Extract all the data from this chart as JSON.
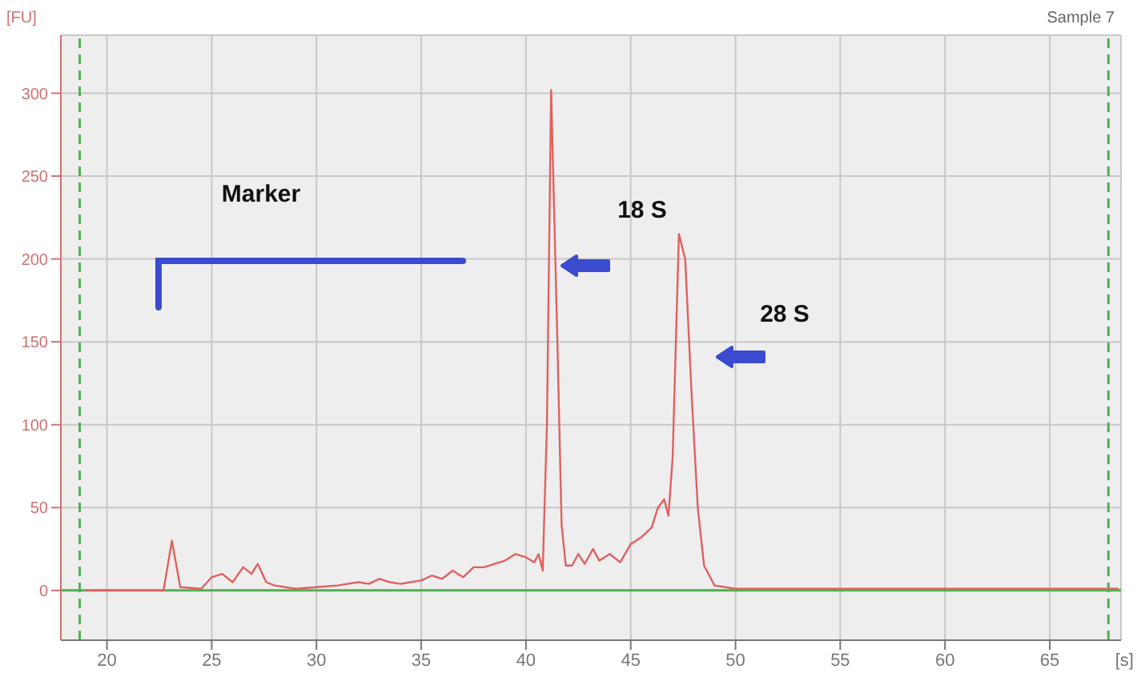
{
  "chart_data": {
    "type": "line",
    "ylabel": "[FU]",
    "xlabel": "[s]",
    "x": [
      19,
      22.7,
      23.1,
      23.5,
      24.5,
      25,
      25.5,
      26,
      26.5,
      26.9,
      27.2,
      27.6,
      28,
      29,
      30,
      31,
      32,
      32.5,
      33,
      33.5,
      34,
      35,
      35.5,
      36,
      36.5,
      37,
      37.5,
      38,
      38.5,
      39,
      39.5,
      40,
      40.4,
      40.6,
      40.8,
      41.0,
      41.2,
      41.5,
      41.7,
      41.9,
      42.2,
      42.5,
      42.8,
      43.2,
      43.5,
      44,
      44.5,
      45,
      45.5,
      46,
      46.3,
      46.6,
      46.8,
      47.0,
      47.3,
      47.6,
      47.9,
      48.2,
      48.5,
      49,
      50,
      55,
      60,
      67,
      68.3
    ],
    "series": [
      {
        "color": "#e06060",
        "values": [
          0,
          0,
          30,
          2,
          1,
          8,
          10,
          5,
          14,
          10,
          16,
          5,
          3,
          1,
          2,
          3,
          5,
          4,
          7,
          5,
          4,
          6,
          9,
          7,
          12,
          8,
          14,
          14,
          16,
          18,
          22,
          20,
          17,
          22,
          12,
          100,
          302,
          150,
          40,
          15,
          15,
          22,
          16,
          25,
          18,
          22,
          17,
          28,
          32,
          38,
          50,
          55,
          45,
          80,
          215,
          200,
          120,
          50,
          15,
          3,
          1,
          1,
          1,
          1,
          1
        ]
      }
    ],
    "xlim": [
      17.8,
      68.4
    ],
    "ylim": [
      -30,
      335
    ],
    "xticks": [
      20,
      25,
      30,
      35,
      40,
      45,
      50,
      55,
      60,
      65
    ],
    "yticks": [
      0,
      50,
      100,
      150,
      200,
      250,
      300
    ],
    "grid": true,
    "marker": "none",
    "line_style": "solid",
    "ref_lines": [
      {
        "axis": "x",
        "value": 18.7,
        "color": "#50b050",
        "line_style": "dashed"
      },
      {
        "axis": "x",
        "value": 67.8,
        "color": "#50b050",
        "line_style": "dashed"
      },
      {
        "axis": "y",
        "value": 0,
        "color": "#50b050",
        "line_style": "solid"
      }
    ],
    "annotations": [
      "Sample 7",
      "Marker",
      "18 S",
      "28 S"
    ]
  }
}
